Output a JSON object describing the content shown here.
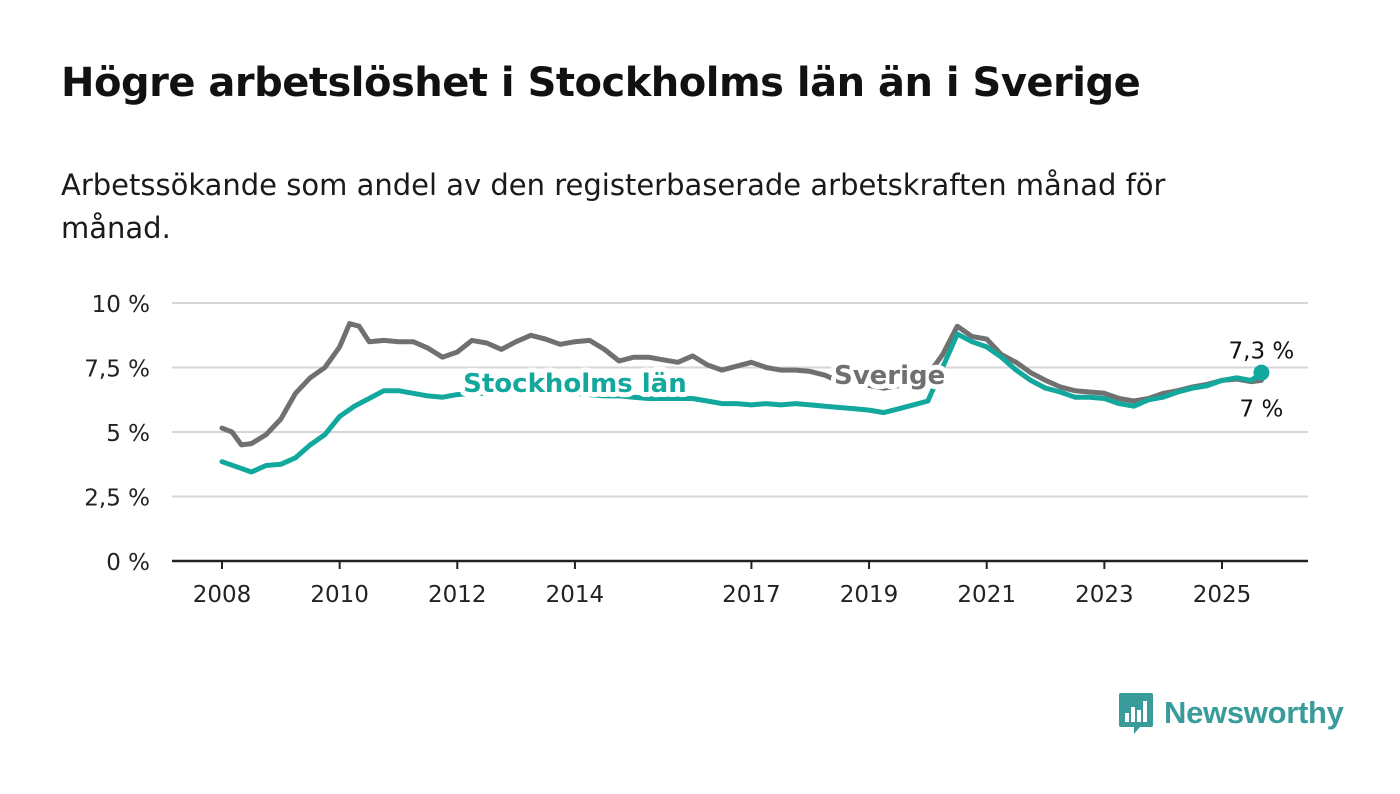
{
  "header": {
    "title": "Högre arbetslöshet i Stockholms län än i Sverige",
    "subtitle": "Arbetssökande som andel av den registerbaserade arbetskraften månad för månad."
  },
  "brand": {
    "name": "Newsworthy",
    "color": "#3a9b9b",
    "icon": "bar-chart-speech-bubble-icon"
  },
  "chart_data": {
    "type": "line",
    "ylim": [
      0,
      10
    ],
    "y_ticks": [
      0,
      2.5,
      5,
      7.5,
      10
    ],
    "y_tick_labels": [
      "0 %",
      "2,5 %",
      "5 %",
      "7,5 %",
      "10 %"
    ],
    "x_ticks": [
      2008,
      2010,
      2012,
      2014,
      2017,
      2019,
      2021,
      2023,
      2025
    ],
    "x_tick_labels": [
      "2008",
      "2010",
      "2012",
      "2014",
      "2017",
      "2019",
      "2021",
      "2023",
      "2025"
    ],
    "grid": true,
    "end_labels": {
      "stockholm": "7,3 %",
      "sverige": "7 %"
    },
    "series": [
      {
        "name": "Stockholms län",
        "color": "#13a89e",
        "points": [
          [
            2008.0,
            3.85
          ],
          [
            2008.25,
            3.65
          ],
          [
            2008.5,
            3.45
          ],
          [
            2008.75,
            3.7
          ],
          [
            2009.0,
            3.75
          ],
          [
            2009.25,
            4.0
          ],
          [
            2009.5,
            4.5
          ],
          [
            2009.75,
            4.9
          ],
          [
            2010.0,
            5.6
          ],
          [
            2010.25,
            6.0
          ],
          [
            2010.5,
            6.3
          ],
          [
            2010.75,
            6.6
          ],
          [
            2011.0,
            6.6
          ],
          [
            2011.25,
            6.5
          ],
          [
            2011.5,
            6.4
          ],
          [
            2011.75,
            6.35
          ],
          [
            2012.0,
            6.45
          ],
          [
            2012.25,
            6.5
          ],
          [
            2012.5,
            6.5
          ],
          [
            2012.75,
            6.6
          ],
          [
            2013.0,
            6.55
          ],
          [
            2013.25,
            6.5
          ],
          [
            2013.5,
            6.6
          ],
          [
            2013.75,
            6.55
          ],
          [
            2014.0,
            6.5
          ],
          [
            2014.25,
            6.45
          ],
          [
            2014.5,
            6.4
          ],
          [
            2014.75,
            6.4
          ],
          [
            2015.0,
            6.35
          ],
          [
            2015.25,
            6.3
          ],
          [
            2015.5,
            6.3
          ],
          [
            2015.75,
            6.3
          ],
          [
            2016.0,
            6.3
          ],
          [
            2016.25,
            6.2
          ],
          [
            2016.5,
            6.1
          ],
          [
            2016.75,
            6.1
          ],
          [
            2017.0,
            6.05
          ],
          [
            2017.25,
            6.1
          ],
          [
            2017.5,
            6.05
          ],
          [
            2017.75,
            6.1
          ],
          [
            2018.0,
            6.05
          ],
          [
            2018.25,
            6.0
          ],
          [
            2018.5,
            5.95
          ],
          [
            2018.75,
            5.9
          ],
          [
            2019.0,
            5.85
          ],
          [
            2019.25,
            5.75
          ],
          [
            2019.5,
            5.9
          ],
          [
            2019.75,
            6.05
          ],
          [
            2020.0,
            6.2
          ],
          [
            2020.25,
            7.5
          ],
          [
            2020.5,
            8.8
          ],
          [
            2020.75,
            8.5
          ],
          [
            2021.0,
            8.3
          ],
          [
            2021.25,
            7.9
          ],
          [
            2021.5,
            7.4
          ],
          [
            2021.75,
            7.0
          ],
          [
            2022.0,
            6.7
          ],
          [
            2022.25,
            6.55
          ],
          [
            2022.5,
            6.35
          ],
          [
            2022.75,
            6.35
          ],
          [
            2023.0,
            6.3
          ],
          [
            2023.25,
            6.1
          ],
          [
            2023.5,
            6.0
          ],
          [
            2023.75,
            6.25
          ],
          [
            2024.0,
            6.35
          ],
          [
            2024.25,
            6.55
          ],
          [
            2024.5,
            6.7
          ],
          [
            2024.75,
            6.8
          ],
          [
            2025.0,
            7.0
          ],
          [
            2025.25,
            7.1
          ],
          [
            2025.5,
            7.0
          ],
          [
            2025.67,
            7.3
          ]
        ]
      },
      {
        "name": "Sverige",
        "color": "#707070",
        "points": [
          [
            2008.0,
            5.15
          ],
          [
            2008.17,
            5.0
          ],
          [
            2008.33,
            4.5
          ],
          [
            2008.5,
            4.55
          ],
          [
            2008.75,
            4.9
          ],
          [
            2009.0,
            5.5
          ],
          [
            2009.25,
            6.5
          ],
          [
            2009.5,
            7.1
          ],
          [
            2009.75,
            7.5
          ],
          [
            2010.0,
            8.3
          ],
          [
            2010.17,
            9.2
          ],
          [
            2010.33,
            9.1
          ],
          [
            2010.5,
            8.5
          ],
          [
            2010.75,
            8.55
          ],
          [
            2011.0,
            8.5
          ],
          [
            2011.25,
            8.5
          ],
          [
            2011.5,
            8.25
          ],
          [
            2011.75,
            7.9
          ],
          [
            2012.0,
            8.1
          ],
          [
            2012.25,
            8.55
          ],
          [
            2012.5,
            8.45
          ],
          [
            2012.75,
            8.2
          ],
          [
            2013.0,
            8.5
          ],
          [
            2013.25,
            8.75
          ],
          [
            2013.5,
            8.6
          ],
          [
            2013.75,
            8.4
          ],
          [
            2014.0,
            8.5
          ],
          [
            2014.25,
            8.55
          ],
          [
            2014.5,
            8.2
          ],
          [
            2014.75,
            7.75
          ],
          [
            2015.0,
            7.9
          ],
          [
            2015.25,
            7.9
          ],
          [
            2015.5,
            7.8
          ],
          [
            2015.75,
            7.7
          ],
          [
            2016.0,
            7.95
          ],
          [
            2016.25,
            7.6
          ],
          [
            2016.5,
            7.4
          ],
          [
            2016.75,
            7.55
          ],
          [
            2017.0,
            7.7
          ],
          [
            2017.25,
            7.5
          ],
          [
            2017.5,
            7.4
          ],
          [
            2017.75,
            7.4
          ],
          [
            2018.0,
            7.35
          ],
          [
            2018.25,
            7.2
          ],
          [
            2018.5,
            6.95
          ],
          [
            2018.75,
            6.9
          ],
          [
            2019.0,
            6.8
          ],
          [
            2019.25,
            6.7
          ],
          [
            2019.5,
            6.8
          ],
          [
            2019.75,
            6.9
          ],
          [
            2020.0,
            7.2
          ],
          [
            2020.25,
            8.0
          ],
          [
            2020.5,
            9.1
          ],
          [
            2020.75,
            8.7
          ],
          [
            2021.0,
            8.6
          ],
          [
            2021.25,
            8.0
          ],
          [
            2021.5,
            7.7
          ],
          [
            2021.75,
            7.3
          ],
          [
            2022.0,
            7.0
          ],
          [
            2022.25,
            6.75
          ],
          [
            2022.5,
            6.6
          ],
          [
            2022.75,
            6.55
          ],
          [
            2023.0,
            6.5
          ],
          [
            2023.25,
            6.3
          ],
          [
            2023.5,
            6.2
          ],
          [
            2023.75,
            6.3
          ],
          [
            2024.0,
            6.5
          ],
          [
            2024.25,
            6.6
          ],
          [
            2024.5,
            6.75
          ],
          [
            2024.75,
            6.85
          ],
          [
            2025.0,
            7.0
          ],
          [
            2025.25,
            7.05
          ],
          [
            2025.5,
            6.95
          ],
          [
            2025.67,
            7.0
          ]
        ]
      }
    ],
    "annotations": [
      {
        "text": "Stockholms län",
        "series": "Stockholms län",
        "x": 2014.0,
        "y": 6.9
      },
      {
        "text": "Sverige",
        "series": "Sverige",
        "x": 2019.35,
        "y": 7.2
      }
    ]
  }
}
